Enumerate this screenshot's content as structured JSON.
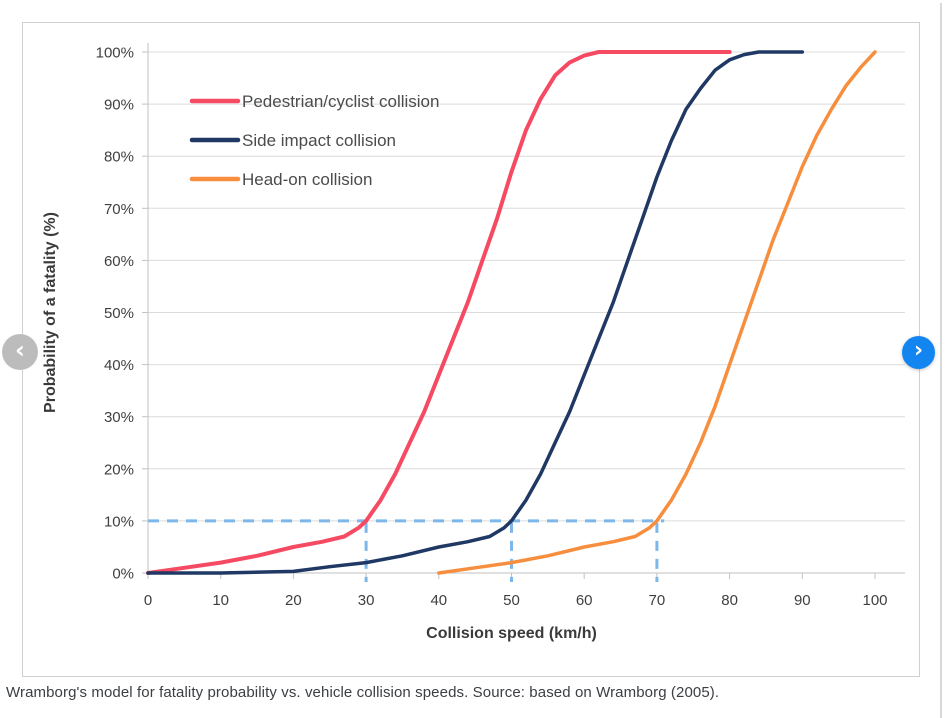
{
  "caption": "Wramborg's model for fatality probability vs. vehicle collision speeds. Source: based on Wramborg (2005).",
  "carousel": {
    "prev_icon_glyph": "‹",
    "next_icon_glyph": "›"
  },
  "colors": {
    "card_border": "#d0d0d0",
    "grid_line": "#dcdcdc",
    "axis_line": "#c2c2c2",
    "prev_button": "#bcbcbc",
    "next_button": "#1385f0"
  },
  "chart_data": {
    "type": "line",
    "title": "",
    "xlabel": "Collision speed (km/h)",
    "ylabel": "Probability of a fatality (%)",
    "xlim": [
      0,
      100
    ],
    "ylim": [
      0,
      100
    ],
    "grid": "horizontal",
    "legend_position": "top-left-inside",
    "x_ticks": [
      0,
      10,
      20,
      30,
      40,
      50,
      60,
      70,
      80,
      90,
      100
    ],
    "x_tick_labels": [
      "0",
      "10",
      "20",
      "30",
      "40",
      "50",
      "60",
      "70",
      "80",
      "90",
      "100"
    ],
    "y_ticks": [
      0,
      10,
      20,
      30,
      40,
      50,
      60,
      70,
      80,
      90,
      100
    ],
    "y_tick_labels": [
      "0%",
      "10%",
      "20%",
      "30%",
      "40%",
      "50%",
      "60%",
      "70%",
      "80%",
      "90%",
      "100%"
    ],
    "series": [
      {
        "name": "Pedestrian/cyclist collision",
        "color": "#f64a63",
        "stroke_width": 4,
        "points": [
          [
            0,
            0
          ],
          [
            5,
            1
          ],
          [
            10,
            2
          ],
          [
            15,
            3.3
          ],
          [
            20,
            5
          ],
          [
            24,
            6
          ],
          [
            27,
            7
          ],
          [
            29,
            8.7
          ],
          [
            30,
            10
          ],
          [
            32,
            14
          ],
          [
            34,
            19
          ],
          [
            36,
            25
          ],
          [
            38,
            31
          ],
          [
            40,
            38
          ],
          [
            42,
            45
          ],
          [
            44,
            52
          ],
          [
            46,
            60
          ],
          [
            48,
            68
          ],
          [
            50,
            77
          ],
          [
            52,
            85
          ],
          [
            54,
            91
          ],
          [
            56,
            95.5
          ],
          [
            58,
            98
          ],
          [
            60,
            99.3
          ],
          [
            62,
            100
          ],
          [
            70,
            100
          ],
          [
            80,
            100
          ]
        ]
      },
      {
        "name": "Side impact collision",
        "color": "#1f3864",
        "stroke_width": 3.5,
        "points": [
          [
            0,
            0
          ],
          [
            10,
            0
          ],
          [
            20,
            0.3
          ],
          [
            25,
            1.2
          ],
          [
            30,
            2
          ],
          [
            35,
            3.3
          ],
          [
            40,
            5
          ],
          [
            44,
            6
          ],
          [
            47,
            7
          ],
          [
            49,
            8.7
          ],
          [
            50,
            10
          ],
          [
            52,
            14
          ],
          [
            54,
            19
          ],
          [
            56,
            25
          ],
          [
            58,
            31
          ],
          [
            60,
            38
          ],
          [
            62,
            45
          ],
          [
            64,
            52
          ],
          [
            66,
            60
          ],
          [
            68,
            68
          ],
          [
            70,
            76
          ],
          [
            72,
            83
          ],
          [
            74,
            89
          ],
          [
            76,
            93
          ],
          [
            78,
            96.5
          ],
          [
            80,
            98.5
          ],
          [
            82,
            99.5
          ],
          [
            84,
            100
          ],
          [
            90,
            100
          ]
        ]
      },
      {
        "name": "Head-on collision",
        "color": "#f78e3d",
        "stroke_width": 3.5,
        "points": [
          [
            40,
            0
          ],
          [
            45,
            1
          ],
          [
            50,
            2
          ],
          [
            55,
            3.3
          ],
          [
            60,
            5
          ],
          [
            64,
            6
          ],
          [
            67,
            7
          ],
          [
            69,
            8.7
          ],
          [
            70,
            10
          ],
          [
            72,
            14
          ],
          [
            74,
            19
          ],
          [
            76,
            25
          ],
          [
            78,
            32
          ],
          [
            80,
            40
          ],
          [
            82,
            48
          ],
          [
            84,
            56
          ],
          [
            86,
            64
          ],
          [
            88,
            71
          ],
          [
            90,
            78
          ],
          [
            92,
            84
          ],
          [
            94,
            89
          ],
          [
            96,
            93.5
          ],
          [
            98,
            97
          ],
          [
            100,
            100
          ]
        ]
      }
    ],
    "guides": {
      "style": "dashed",
      "color": "#7db7ea",
      "fatality_probability_pct": 10,
      "collision_speeds_kmh": [
        30,
        50,
        70
      ],
      "horizontal_extent_kmh": [
        0,
        71
      ]
    }
  }
}
